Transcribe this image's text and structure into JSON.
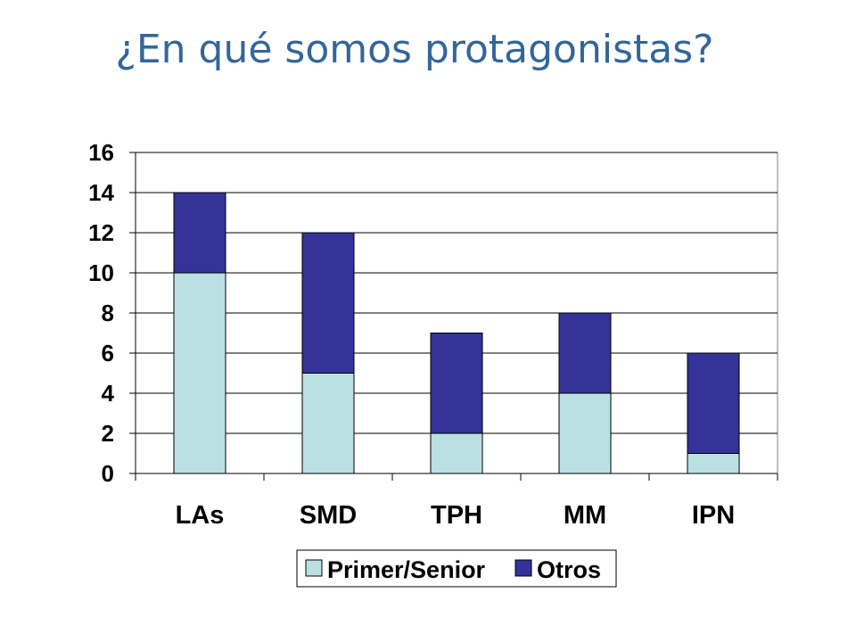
{
  "title": "¿En qué somos protagonistas?",
  "chart_data": {
    "type": "bar",
    "stacked": true,
    "categories": [
      "LAs",
      "SMD",
      "TPH",
      "MM",
      "IPN"
    ],
    "series": [
      {
        "name": "Primer/Senior",
        "values": [
          10,
          5,
          2,
          4,
          1
        ],
        "color": "#BBE0E3"
      },
      {
        "name": "Otros",
        "values": [
          4,
          7,
          5,
          4,
          5
        ],
        "color": "#333399"
      }
    ],
    "ylim": [
      0,
      16
    ],
    "yticks": [
      0,
      2,
      4,
      6,
      8,
      10,
      12,
      14,
      16
    ],
    "grid": true,
    "legend": "bottom",
    "xlabel": "",
    "ylabel": ""
  }
}
